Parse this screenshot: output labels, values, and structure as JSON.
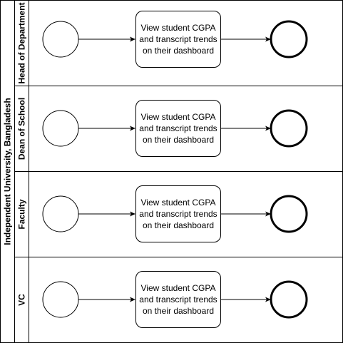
{
  "pool": {
    "label": "Independent University, Bangladesh"
  },
  "lanes": [
    {
      "label": "Head of Department",
      "task": "View student CGPA and transcript trends on their dashboard"
    },
    {
      "label": "Dean of School",
      "task": "View student CGPA and transcript trends on their dashboard"
    },
    {
      "label": "Faculty",
      "task": "View student CGPA and transcript trends on their dashboard"
    },
    {
      "label": "VC",
      "task": "View student CGPA and transcript trends on their dashboard"
    }
  ],
  "colors": {
    "stroke": "#000000",
    "fill": "#ffffff"
  }
}
